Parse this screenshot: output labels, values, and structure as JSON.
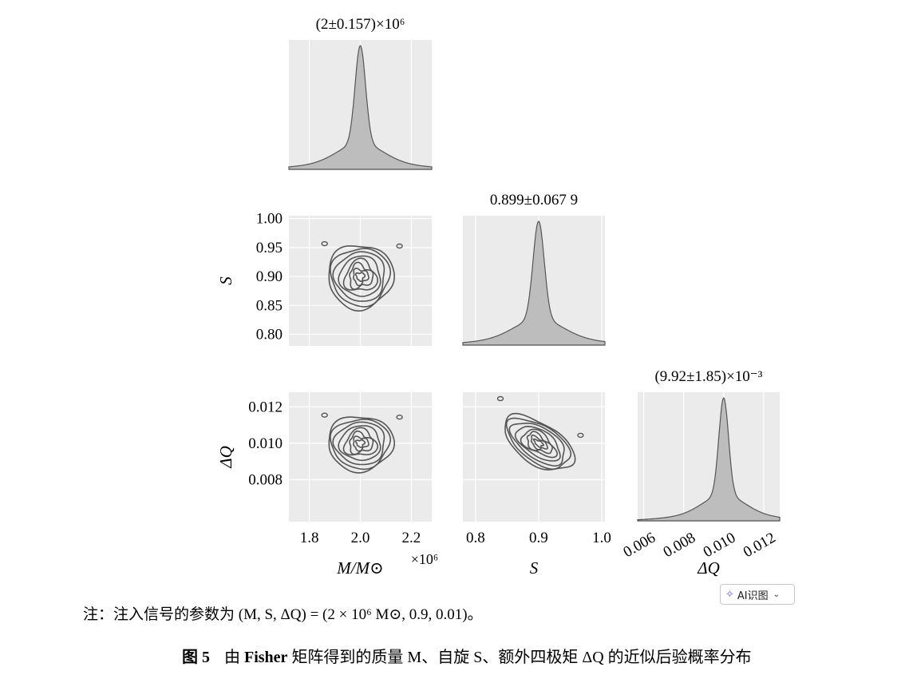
{
  "chart_data": {
    "type": "corner",
    "parameters": [
      {
        "name": "M",
        "axis_label": "M/M⊙",
        "truth": 2.0,
        "axis_multiplier": "×10⁶",
        "lim": [
          1.72,
          2.28
        ],
        "ticks": [
          1.8,
          2.0,
          2.2
        ],
        "tick_labels": [
          "1.8",
          "2.0",
          "2.2"
        ],
        "summary": "(2±0.157)×10⁶",
        "sigma_display": 0.157
      },
      {
        "name": "S",
        "axis_label": "S",
        "truth": 0.9,
        "lim": [
          0.78,
          1.005
        ],
        "ticks": [
          0.8,
          0.9,
          1.0
        ],
        "tick_labels": [
          "0.8",
          "0.9",
          "1.0"
        ],
        "left_ticks": [
          0.8,
          0.85,
          0.9,
          0.95,
          1.0
        ],
        "left_tick_labels": [
          "0.80",
          "0.85",
          "0.90",
          "0.95",
          "1.00"
        ],
        "summary": "0.899±0.067 9",
        "sigma_display": 0.0679
      },
      {
        "name": "ΔQ",
        "axis_label": "ΔQ",
        "truth": 0.01,
        "lim": [
          0.0057,
          0.0128
        ],
        "ticks": [
          0.006,
          0.008,
          0.01,
          0.012
        ],
        "tick_labels": [
          "0.006",
          "0.008",
          "0.010",
          "0.012"
        ],
        "left_ticks": [
          0.008,
          0.01,
          0.012
        ],
        "left_tick_labels": [
          "0.008",
          "0.010",
          "0.012"
        ],
        "summary": "(9.92±1.85)×10⁻³",
        "sigma_display": 0.00185
      }
    ],
    "grid": true,
    "background": "#ebebeb",
    "line_color": "#555555",
    "fill_color": "#bdbdbd"
  },
  "ui": {
    "ai_button_label": "AI识图"
  },
  "note": {
    "prefix": "注：注入信号的参数为 ",
    "formula": "(M, S, ΔQ) = (2 × 10⁶ M⊙, 0.9, 0.01)。"
  },
  "caption": {
    "number": "图 5",
    "text_a": "由 ",
    "bold_word": "Fisher",
    "text_b": " 矩阵得到的质量 M、自旋 S、额外四极矩 ΔQ 的近似后验概率分布"
  }
}
